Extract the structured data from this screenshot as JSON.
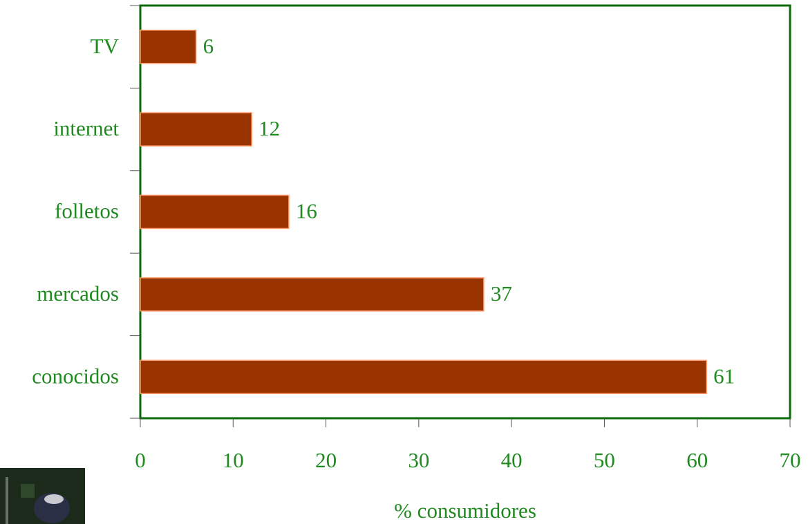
{
  "chart_data": {
    "type": "barh",
    "categories": [
      "TV",
      "internet",
      "folletos",
      "mercados",
      "conocidos"
    ],
    "values": [
      6,
      12,
      16,
      37,
      61
    ],
    "color": "#993300",
    "xlim": [
      0,
      70
    ],
    "xticks": [
      0,
      10,
      20,
      30,
      40,
      50,
      60,
      70
    ],
    "xlabel": "% consumidores"
  }
}
